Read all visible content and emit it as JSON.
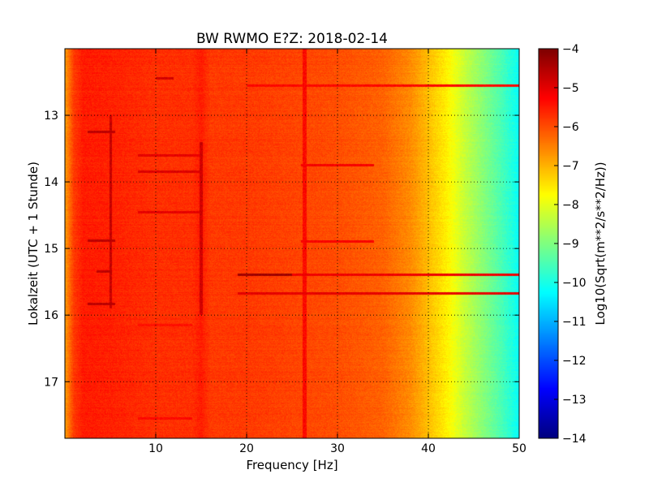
{
  "chart_data": {
    "type": "heatmap",
    "title": "BW RWMO E?Z: 2018-02-14",
    "xlabel": "Frequency [Hz]",
    "ylabel": "Lokalzeit (UTC + 1 Stunde)",
    "xlim": [
      0,
      50
    ],
    "ylim": [
      12.0,
      17.85
    ],
    "y_inverted": true,
    "x_ticks": [
      10,
      20,
      30,
      40,
      50
    ],
    "y_ticks": [
      13,
      14,
      15,
      16,
      17
    ],
    "grid": true,
    "colormap": "jet",
    "colorbar": {
      "label": "Log10(Sqrt(m**2/s**2/Hz))",
      "range": [
        -14,
        -4
      ],
      "ticks": [
        -4,
        -5,
        -6,
        -7,
        -8,
        -9,
        -10,
        -11,
        -12,
        -13,
        -14
      ]
    },
    "spectral_profile": {
      "frequency_hz": [
        0,
        1,
        2,
        5,
        10,
        14,
        15,
        16,
        20,
        25,
        30,
        35,
        38,
        40,
        42,
        44,
        46,
        48,
        50
      ],
      "log10_level": [
        -6.8,
        -5.8,
        -5.5,
        -5.55,
        -5.7,
        -5.7,
        -5.5,
        -5.8,
        -5.8,
        -5.9,
        -6.0,
        -6.2,
        -6.6,
        -7.1,
        -7.6,
        -8.3,
        -8.9,
        -9.5,
        -10.2
      ]
    },
    "features": [
      {
        "f_min": 19,
        "f_max": 25,
        "t": 15.4,
        "level": -4.3
      },
      {
        "f_min": 25,
        "f_max": 50,
        "t": 15.4,
        "level": -5.1
      },
      {
        "f_min": 19,
        "f_max": 50,
        "t": 15.68,
        "level": -5.0
      },
      {
        "f_min": 20,
        "f_max": 50,
        "t": 12.55,
        "level": -5.3
      },
      {
        "f_min": 10,
        "f_max": 12,
        "t": 12.45,
        "level": -4.8
      },
      {
        "f_min": 2.5,
        "f_max": 5.5,
        "t": 13.25,
        "level": -4.6
      },
      {
        "f_min": 2.5,
        "f_max": 5.5,
        "t": 14.88,
        "level": -4.6
      },
      {
        "f_min": 2.5,
        "f_max": 5.5,
        "t": 15.83,
        "level": -4.6
      },
      {
        "f_min": 3.5,
        "f_max": 5.2,
        "t": 15.35,
        "level": -4.6
      },
      {
        "f_min": 8,
        "f_max": 15,
        "t": 13.6,
        "level": -5.0
      },
      {
        "f_min": 8,
        "f_max": 15,
        "t": 13.85,
        "level": -4.9
      },
      {
        "f_min": 8,
        "f_max": 15,
        "t": 14.45,
        "level": -5.0
      },
      {
        "f_min": 26,
        "f_max": 34,
        "t": 13.75,
        "level": -5.2
      },
      {
        "f_min": 26,
        "f_max": 34,
        "t": 14.9,
        "level": -5.2
      },
      {
        "f_min": 8,
        "f_max": 14,
        "t": 17.55,
        "level": -5.3
      },
      {
        "f_min": 8,
        "f_max": 14,
        "t": 16.15,
        "level": -5.4
      },
      {
        "f_min": 4.9,
        "f_max": 5.2,
        "t_min": 13.0,
        "t_max": 15.9,
        "level": -4.7
      },
      {
        "f_min": 14.8,
        "f_max": 15.2,
        "t_min": 13.4,
        "t_max": 16.0,
        "level": -4.8
      },
      {
        "f_min": 26.2,
        "f_max": 26.6,
        "t_min": 12.0,
        "t_max": 17.85,
        "level": -5.3
      }
    ]
  }
}
